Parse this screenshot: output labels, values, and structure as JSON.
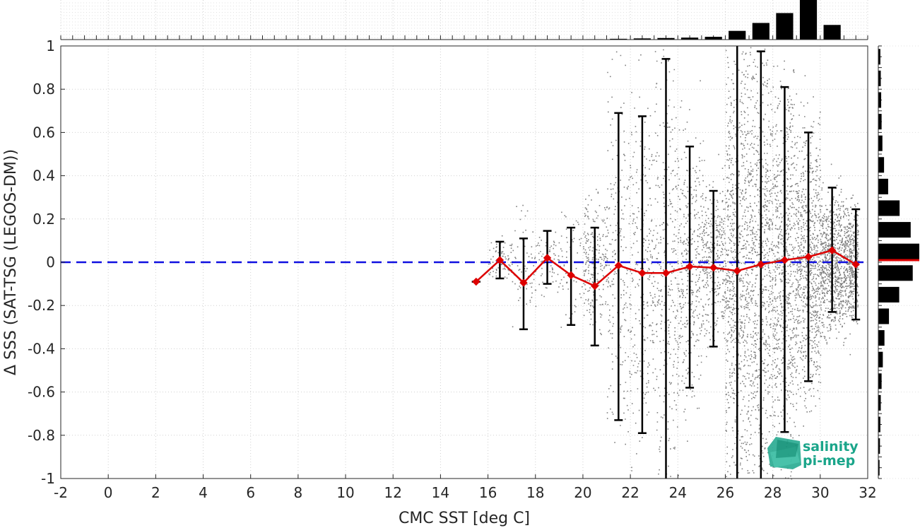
{
  "chart_data": {
    "type": "scatter",
    "xlabel": "CMC SST [deg C]",
    "ylabel": "Δ SSS (SAT-TSG (LEGOS-DM))",
    "xlim": [
      -2,
      32
    ],
    "ylim": [
      -1,
      1
    ],
    "xticks": [
      -2,
      0,
      2,
      4,
      6,
      8,
      10,
      12,
      14,
      16,
      18,
      20,
      22,
      24,
      26,
      28,
      30,
      32
    ],
    "yticks": [
      -1,
      -0.8,
      -0.6,
      -0.4,
      -0.2,
      0,
      0.2,
      0.4,
      0.6,
      0.8,
      1
    ],
    "grid": true,
    "reference_line": {
      "y": 0,
      "style": "dashed",
      "color": "#1010e0"
    },
    "binned_means": {
      "color": "#dd0000",
      "x": [
        15.5,
        16.5,
        17.5,
        18.5,
        19.5,
        20.5,
        21.5,
        22.5,
        23.5,
        24.5,
        25.5,
        26.5,
        27.5,
        28.5,
        29.5,
        30.5,
        31.5
      ],
      "y": [
        -0.09,
        0.01,
        -0.095,
        0.02,
        -0.06,
        -0.11,
        -0.015,
        -0.05,
        -0.05,
        -0.02,
        -0.025,
        -0.04,
        -0.01,
        0.01,
        0.025,
        0.055,
        -0.01
      ],
      "err_low": [
        -0.09,
        -0.075,
        -0.31,
        -0.1,
        -0.29,
        -0.385,
        -0.73,
        -0.79,
        -1.0,
        -0.58,
        -0.39,
        -1.0,
        -1.0,
        -0.785,
        -0.55,
        -0.23,
        -0.265
      ],
      "err_high": [
        -0.09,
        0.095,
        0.11,
        0.145,
        0.16,
        0.16,
        0.69,
        0.675,
        0.94,
        0.535,
        0.33,
        1.0,
        0.975,
        0.81,
        0.6,
        0.345,
        0.245
      ]
    },
    "scatter_color": "#808080",
    "top_histogram": {
      "bin_centers": [
        20.5,
        21.5,
        22.5,
        23.5,
        24.5,
        25.5,
        26.5,
        27.5,
        28.5,
        29.5,
        30.5
      ],
      "relative_counts": [
        0.01,
        0.02,
        0.03,
        0.04,
        0.05,
        0.07,
        0.22,
        0.42,
        0.67,
        1.0,
        0.37
      ]
    },
    "right_histogram": {
      "bin_centers": [
        -0.95,
        -0.85,
        -0.75,
        -0.65,
        -0.55,
        -0.45,
        -0.35,
        -0.25,
        -0.15,
        -0.05,
        0.05,
        0.15,
        0.25,
        0.35,
        0.45,
        0.55,
        0.65,
        0.75,
        0.85,
        0.95
      ],
      "relative_counts": [
        0.03,
        0.04,
        0.05,
        0.06,
        0.08,
        0.11,
        0.15,
        0.26,
        0.51,
        0.84,
        1.0,
        0.79,
        0.52,
        0.24,
        0.14,
        0.1,
        0.08,
        0.07,
        0.06,
        0.05
      ],
      "median_line_color": "#dd0000"
    }
  },
  "logo": {
    "line1": "salinity",
    "line2": "pi-mep",
    "color": "#1aa58a",
    "icon": "salinity-pimep-logo-icon"
  }
}
